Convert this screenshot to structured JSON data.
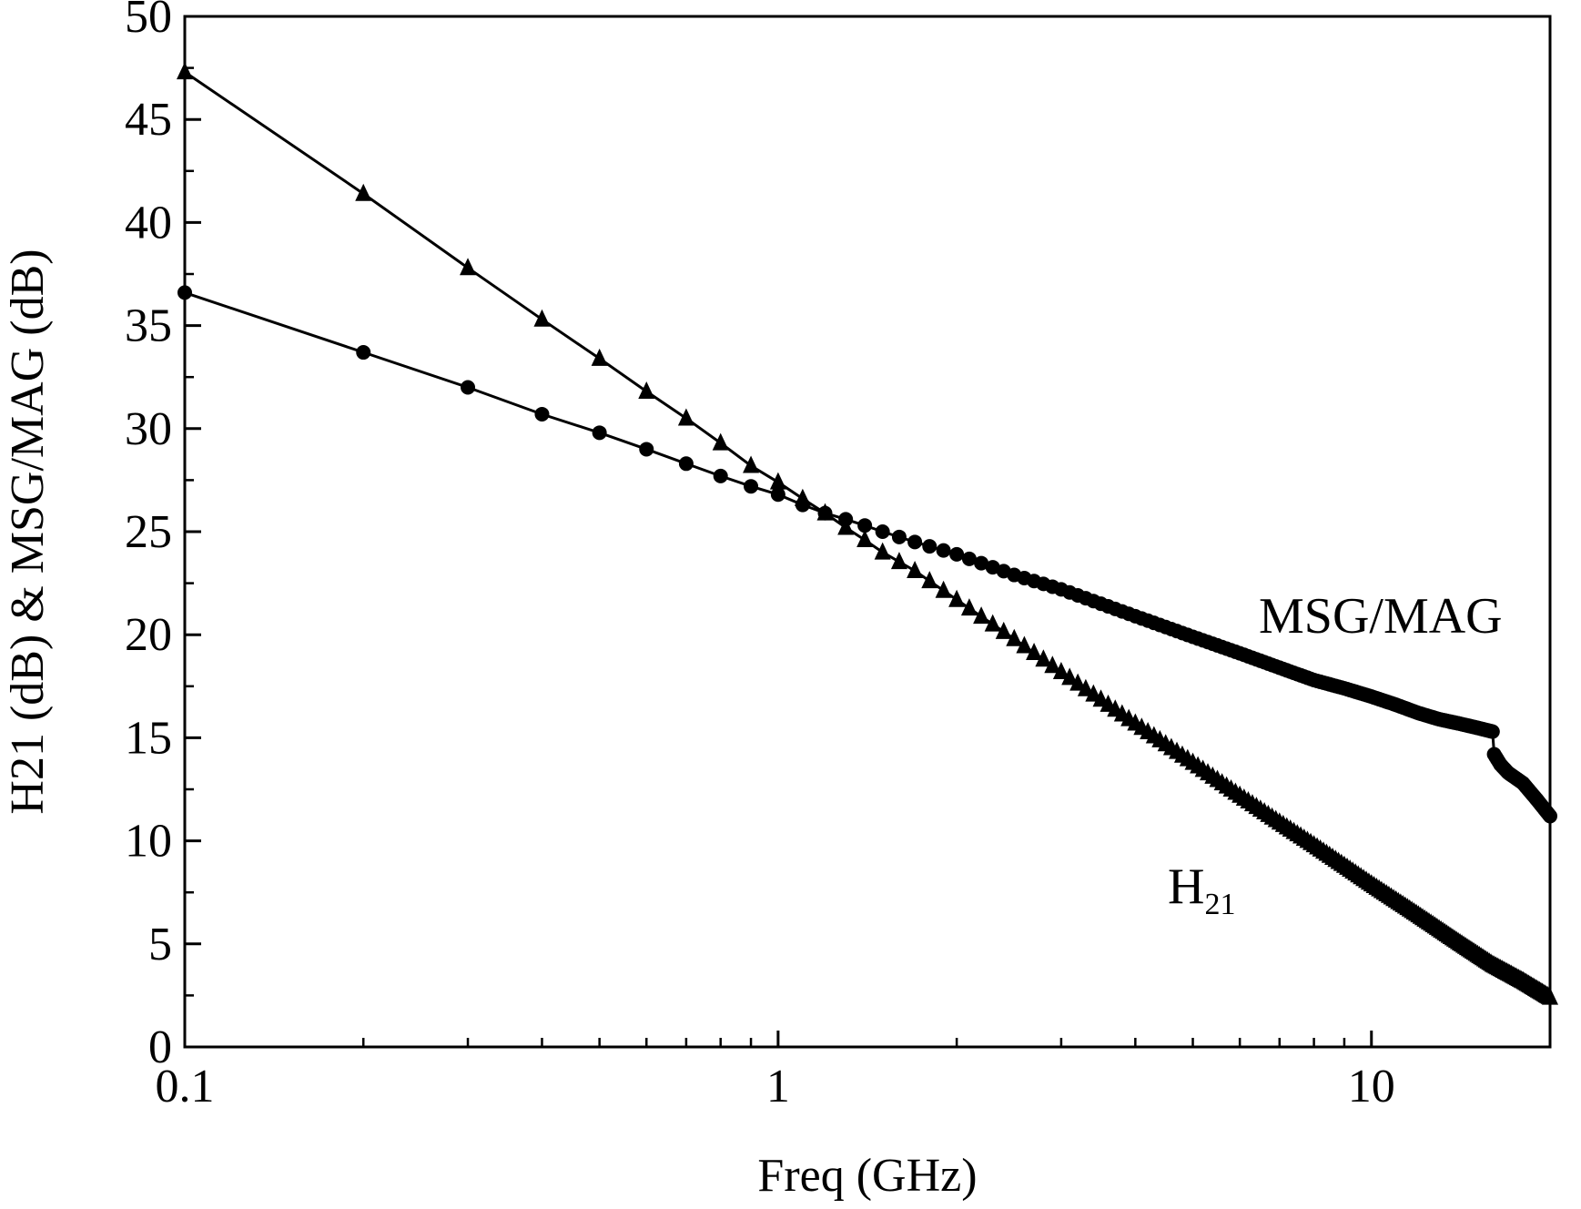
{
  "chart_data": {
    "type": "line",
    "title": "",
    "xlabel": "Freq (GHz)",
    "ylabel": "H21 (dB) & MSG/MAG (dB)",
    "xscale": "log",
    "xlim": [
      0.1,
      20
    ],
    "ylim": [
      0,
      50
    ],
    "xticks": [
      0.1,
      1,
      10
    ],
    "xtick_labels": [
      "0.1",
      "1",
      "10"
    ],
    "yticks": [
      0,
      5,
      10,
      15,
      20,
      25,
      30,
      35,
      40,
      45,
      50
    ],
    "ytick_labels": [
      "0",
      "5",
      "10",
      "15",
      "20",
      "25",
      "30",
      "35",
      "40",
      "45",
      "50"
    ],
    "grid": false,
    "series": [
      {
        "name": "MSG/MAG",
        "marker": "circle",
        "label_main": "MSG/MAG",
        "label_sub": "",
        "x": [
          0.1,
          0.2,
          0.3,
          0.4,
          0.5,
          0.6,
          0.7,
          0.8,
          0.9,
          1.0,
          1.1,
          1.2,
          1.3,
          1.4,
          1.5,
          1.7,
          2.0,
          2.5,
          3.0,
          4.0,
          5.0,
          6.0,
          7.0,
          8.0,
          9.0,
          10.0,
          11.0,
          12.0,
          13.0,
          14.0,
          15.0,
          16.0,
          16.1,
          16.5,
          17.0,
          18.0,
          19.0,
          20.0
        ],
        "values": [
          36.6,
          33.7,
          32.0,
          30.7,
          29.8,
          29.0,
          28.3,
          27.7,
          27.2,
          26.8,
          26.3,
          25.9,
          25.6,
          25.3,
          25.0,
          24.5,
          23.9,
          22.9,
          22.2,
          20.9,
          19.9,
          19.1,
          18.4,
          17.8,
          17.4,
          17.0,
          16.6,
          16.2,
          15.9,
          15.7,
          15.5,
          15.3,
          14.2,
          13.7,
          13.3,
          12.8,
          12.0,
          11.2
        ]
      },
      {
        "name": "H21",
        "marker": "triangle",
        "label_main": "H",
        "label_sub": "21",
        "x": [
          0.1,
          0.2,
          0.3,
          0.4,
          0.5,
          0.6,
          0.7,
          0.8,
          0.9,
          1.0,
          1.1,
          1.2,
          1.3,
          1.4,
          1.5,
          1.7,
          2.0,
          2.5,
          3.0,
          4.0,
          5.0,
          6.0,
          7.0,
          8.0,
          9.0,
          10.0,
          12.0,
          14.0,
          16.0,
          18.0,
          20.0
        ],
        "values": [
          47.3,
          41.4,
          37.8,
          35.3,
          33.4,
          31.8,
          30.5,
          29.3,
          28.2,
          27.4,
          26.6,
          25.9,
          25.2,
          24.6,
          24.0,
          23.1,
          21.7,
          19.8,
          18.2,
          15.7,
          13.8,
          12.2,
          10.9,
          9.8,
          8.8,
          7.9,
          6.4,
          5.1,
          4.0,
          3.2,
          2.4
        ]
      }
    ]
  }
}
